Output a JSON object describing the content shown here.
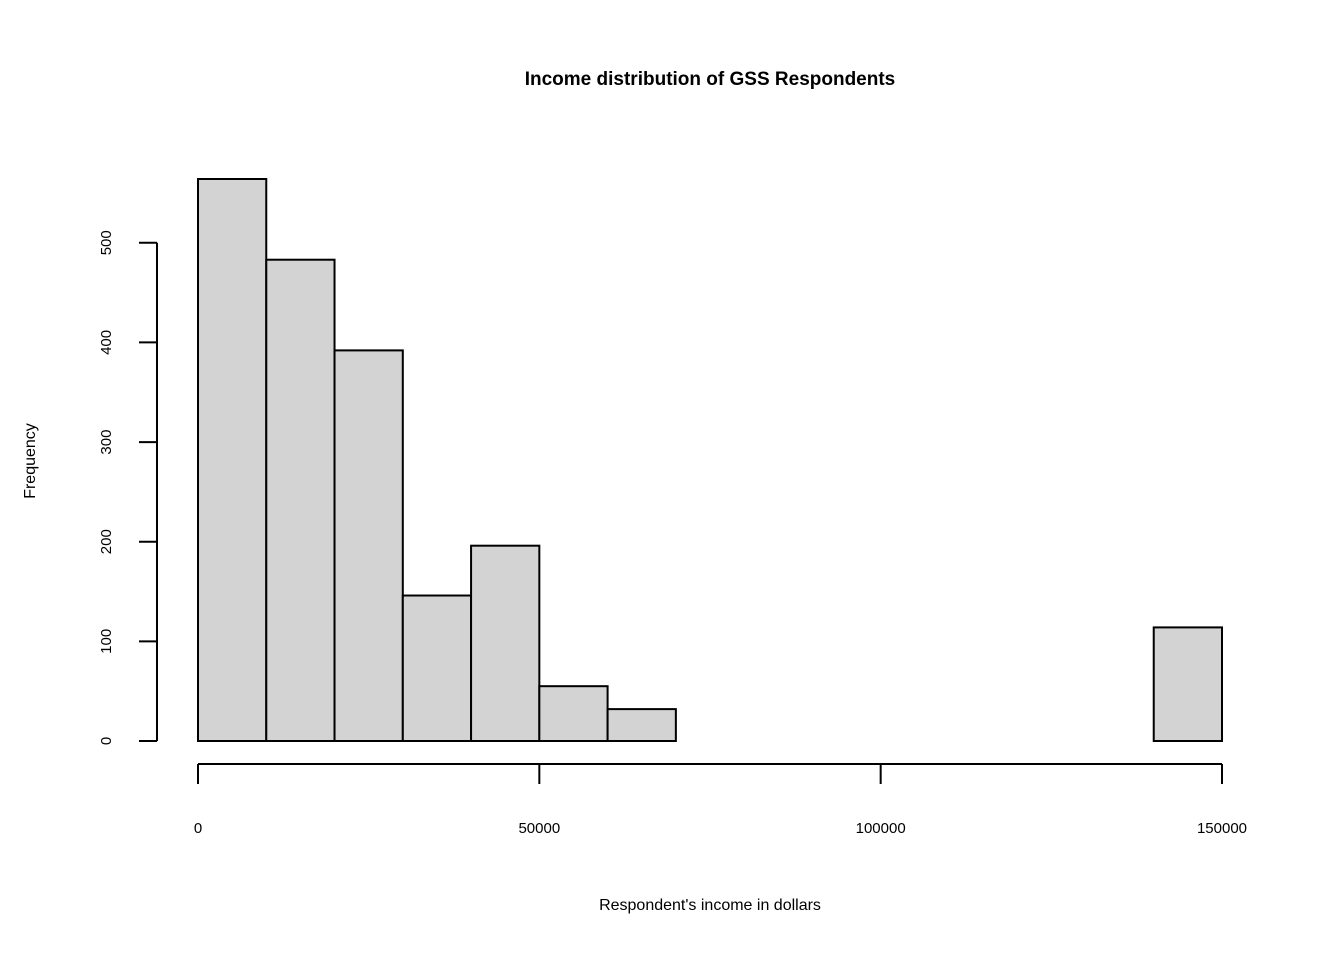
{
  "chart_data": {
    "type": "bar",
    "subtype": "histogram",
    "title": "Income distribution of GSS Respondents",
    "xlabel": "Respondent's income in dollars",
    "ylabel": "Frequency",
    "bins": [
      {
        "start": 0,
        "end": 10000,
        "count": 564
      },
      {
        "start": 10000,
        "end": 20000,
        "count": 483
      },
      {
        "start": 20000,
        "end": 30000,
        "count": 392
      },
      {
        "start": 30000,
        "end": 40000,
        "count": 146
      },
      {
        "start": 40000,
        "end": 50000,
        "count": 196
      },
      {
        "start": 50000,
        "end": 60000,
        "count": 55
      },
      {
        "start": 60000,
        "end": 70000,
        "count": 32
      },
      {
        "start": 70000,
        "end": 80000,
        "count": 0
      },
      {
        "start": 80000,
        "end": 90000,
        "count": 0
      },
      {
        "start": 90000,
        "end": 100000,
        "count": 0
      },
      {
        "start": 100000,
        "end": 110000,
        "count": 0
      },
      {
        "start": 110000,
        "end": 120000,
        "count": 0
      },
      {
        "start": 120000,
        "end": 130000,
        "count": 0
      },
      {
        "start": 130000,
        "end": 140000,
        "count": 0
      },
      {
        "start": 140000,
        "end": 150000,
        "count": 114
      }
    ],
    "xlim": [
      0,
      150000
    ],
    "ylim": [
      0,
      564
    ],
    "x_ticks": [
      0,
      50000,
      100000,
      150000
    ],
    "x_tick_labels": [
      "0",
      "50000",
      "100000",
      "150000"
    ],
    "y_ticks": [
      0,
      100,
      200,
      300,
      400,
      500
    ],
    "y_tick_labels": [
      "0",
      "100",
      "200",
      "300",
      "400",
      "500"
    ],
    "grid": false,
    "bar_color": "#d3d3d3",
    "edge_color": "#000000"
  }
}
